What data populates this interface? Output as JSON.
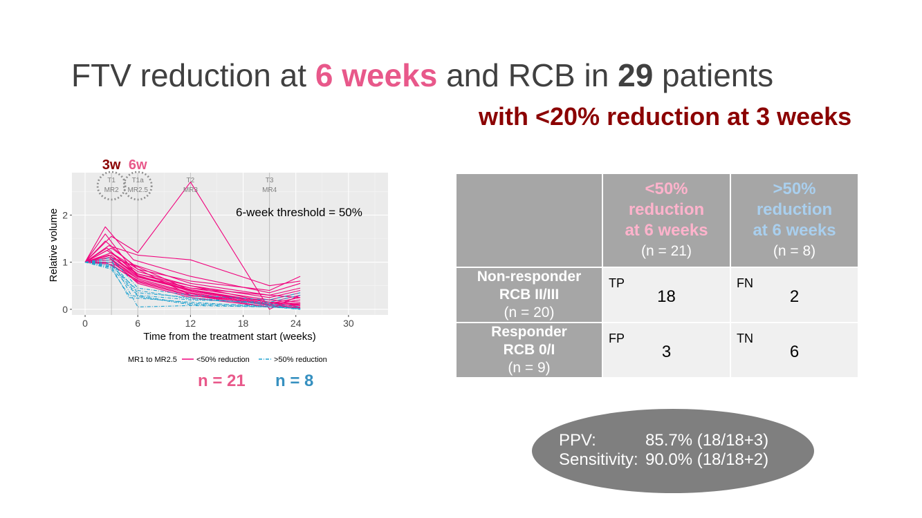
{
  "title": {
    "part1": "FTV reduction at ",
    "highlight1": "6 weeks",
    "part2": " and RCB in ",
    "highlight2": "29",
    "part3": " patients"
  },
  "subtitle": "with <20% reduction at 3 weeks",
  "colors": {
    "pink": "#e8588a",
    "magenta": "#f0007c",
    "blue": "#3690c0",
    "dash_blue": "#1fa2cf",
    "darkred": "#8b0000"
  },
  "chart_data": {
    "type": "line",
    "xlabel": "Time from the treatment start (weeks)",
    "ylabel": "Relative volume",
    "xticks": [
      0,
      6,
      12,
      18,
      24,
      30
    ],
    "yticks": [
      0,
      1,
      2
    ],
    "xlim": [
      -1.5,
      34.5
    ],
    "ylim": [
      -0.12,
      2.9
    ],
    "threshold_label": "6-week threshold = 50%",
    "markers": [
      {
        "week": 3,
        "label1": "T1",
        "label2": "MR2",
        "week_label": "3w",
        "circled": true
      },
      {
        "week": 6,
        "label1": "T1a",
        "label2": "MR2.5",
        "week_label": "6w",
        "circled": true
      },
      {
        "week": 12,
        "label1": "T2",
        "label2": "MR3",
        "week_label": "",
        "circled": false
      },
      {
        "week": 21,
        "label1": "T3",
        "label2": "MR4",
        "week_label": "",
        "circled": false
      }
    ],
    "legend": {
      "title": "MR1 to MR2.5",
      "pink_label": "<50% reduction",
      "blue_label": ">50% reduction"
    },
    "series_pink": [
      [
        [
          0,
          1
        ],
        [
          2.3,
          1.75
        ],
        [
          5.5,
          1.05
        ],
        [
          12,
          0.7
        ],
        [
          21,
          0.35
        ],
        [
          24.5,
          0.55
        ]
      ],
      [
        [
          0,
          1
        ],
        [
          3,
          1.55
        ],
        [
          6,
          1.2
        ],
        [
          12,
          2.7
        ],
        [
          21,
          0.0
        ],
        [
          24.5,
          0.3
        ]
      ],
      [
        [
          0,
          1
        ],
        [
          2.3,
          1.45
        ],
        [
          6,
          0.85
        ],
        [
          12,
          0.6
        ],
        [
          21,
          0.4
        ],
        [
          24.5,
          0.7
        ]
      ],
      [
        [
          0,
          1
        ],
        [
          2.7,
          1.35
        ],
        [
          6,
          1.15
        ],
        [
          12,
          1.05
        ],
        [
          21,
          0.5
        ],
        [
          24.5,
          0.6
        ]
      ],
      [
        [
          0,
          1
        ],
        [
          3,
          1.3
        ],
        [
          5.5,
          0.95
        ],
        [
          12,
          0.55
        ],
        [
          21,
          0.3
        ],
        [
          24.5,
          0.45
        ]
      ],
      [
        [
          0,
          1
        ],
        [
          2.5,
          1.25
        ],
        [
          6,
          0.8
        ],
        [
          12,
          0.5
        ],
        [
          21,
          0.25
        ],
        [
          24.5,
          0.4
        ]
      ],
      [
        [
          0,
          1
        ],
        [
          3,
          1.2
        ],
        [
          6,
          0.75
        ],
        [
          12,
          0.45
        ],
        [
          21,
          0.2
        ],
        [
          24.5,
          0.35
        ]
      ],
      [
        [
          0,
          1
        ],
        [
          3,
          1.15
        ],
        [
          6,
          0.7
        ],
        [
          12,
          0.42
        ],
        [
          21,
          0.15
        ],
        [
          24.5,
          0.3
        ]
      ],
      [
        [
          0,
          1
        ],
        [
          2.7,
          1.1
        ],
        [
          6,
          0.68
        ],
        [
          12,
          0.4
        ],
        [
          21,
          0.12
        ],
        [
          24.5,
          0.25
        ]
      ],
      [
        [
          0,
          1
        ],
        [
          3,
          1.05
        ],
        [
          6,
          0.65
        ],
        [
          12,
          0.35
        ],
        [
          21,
          0.1
        ],
        [
          24.5,
          0.2
        ]
      ],
      [
        [
          0,
          1
        ],
        [
          3,
          1.0
        ],
        [
          6,
          0.6
        ],
        [
          12,
          0.3
        ],
        [
          21,
          0.05
        ],
        [
          24.5,
          0.12
        ]
      ],
      [
        [
          0,
          1
        ],
        [
          2.5,
          0.98
        ],
        [
          6,
          0.62
        ],
        [
          12,
          0.33
        ],
        [
          21,
          0.08
        ],
        [
          24.5,
          0.1
        ]
      ],
      [
        [
          0,
          1
        ],
        [
          3,
          0.95
        ],
        [
          6,
          0.58
        ],
        [
          12,
          0.28
        ],
        [
          21,
          0.2
        ],
        [
          24.5,
          0.15
        ]
      ],
      [
        [
          0,
          1
        ],
        [
          3,
          1.1
        ],
        [
          6,
          0.9
        ],
        [
          12,
          0.4
        ],
        [
          21,
          0.15
        ],
        [
          24.5,
          0.1
        ]
      ],
      [
        [
          0,
          1
        ],
        [
          2.5,
          1.3
        ],
        [
          6,
          0.72
        ],
        [
          12,
          0.38
        ],
        [
          21,
          0.12
        ],
        [
          24.5,
          0.08
        ]
      ],
      [
        [
          0,
          1
        ],
        [
          3,
          1.05
        ],
        [
          6,
          0.55
        ],
        [
          12,
          0.25
        ],
        [
          21,
          0.05
        ],
        [
          24.5,
          0.05
        ]
      ],
      [
        [
          0,
          1
        ],
        [
          3,
          1.2
        ],
        [
          6,
          0.85
        ],
        [
          12,
          0.3
        ],
        [
          21,
          0.1
        ],
        [
          24.5,
          0.03
        ]
      ],
      [
        [
          0,
          1
        ],
        [
          2.3,
          1.6
        ],
        [
          6,
          0.7
        ],
        [
          12,
          0.45
        ],
        [
          21,
          0.3
        ],
        [
          24.5,
          0.25
        ]
      ],
      [
        [
          0,
          1
        ],
        [
          3,
          1.1
        ],
        [
          6,
          0.75
        ],
        [
          12,
          0.5
        ],
        [
          21,
          0.15
        ],
        [
          24.5,
          0.05
        ]
      ],
      [
        [
          0,
          1
        ],
        [
          3,
          1.0
        ],
        [
          6,
          0.65
        ],
        [
          12,
          0.35
        ],
        [
          21,
          0.1
        ],
        [
          24.5,
          0.02
        ]
      ],
      [
        [
          0,
          1
        ],
        [
          2.7,
          1.15
        ],
        [
          6,
          0.7
        ],
        [
          12,
          0.4
        ],
        [
          21,
          0.15
        ],
        [
          24.5,
          0.12
        ]
      ]
    ],
    "series_blue": [
      [
        [
          0,
          1
        ],
        [
          3,
          0.85
        ],
        [
          5,
          0.3
        ],
        [
          12,
          0.1
        ],
        [
          21,
          0.05
        ],
        [
          24.5,
          0.0
        ]
      ],
      [
        [
          0,
          1
        ],
        [
          3,
          0.9
        ],
        [
          5,
          0.25
        ],
        [
          12,
          0.15
        ],
        [
          21,
          0.05
        ],
        [
          24.5,
          0.02
        ]
      ],
      [
        [
          0,
          1
        ],
        [
          3,
          1.0
        ],
        [
          6,
          0.35
        ],
        [
          12,
          0.25
        ],
        [
          21,
          0.1
        ],
        [
          24.5,
          0.0
        ]
      ],
      [
        [
          0,
          1
        ],
        [
          3,
          0.95
        ],
        [
          6,
          0.3
        ],
        [
          12,
          0.2
        ],
        [
          21,
          0.15
        ],
        [
          24.5,
          0.3
        ]
      ],
      [
        [
          0,
          1
        ],
        [
          3,
          1.1
        ],
        [
          6,
          0.45
        ],
        [
          12,
          0.3
        ],
        [
          21,
          0.2
        ],
        [
          24.5,
          0.35
        ]
      ],
      [
        [
          0,
          1
        ],
        [
          3,
          0.92
        ],
        [
          6,
          0.4
        ],
        [
          12,
          0.22
        ],
        [
          21,
          0.12
        ],
        [
          24.5,
          0.05
        ]
      ],
      [
        [
          0,
          1
        ],
        [
          3,
          0.88
        ],
        [
          6,
          0.28
        ],
        [
          12,
          0.12
        ],
        [
          21,
          0.08
        ],
        [
          24.5,
          0.0
        ]
      ],
      [
        [
          0,
          1
        ],
        [
          3,
          1.05
        ],
        [
          6,
          0.05
        ],
        [
          12,
          0.08
        ],
        [
          21,
          0.05
        ],
        [
          24.5,
          0.02
        ]
      ]
    ]
  },
  "counts": {
    "pink": "n = 21",
    "blue": "n = 8"
  },
  "table": {
    "col1": {
      "l1": "<50%",
      "l2": "reduction",
      "l3": "at 6 weeks",
      "n": "(n = 21)"
    },
    "col2": {
      "l1": ">50%",
      "l2": "reduction",
      "l3": "at 6 weeks",
      "n": "(n = 8)"
    },
    "row1": {
      "l1": "Non-responder",
      "l2": "RCB II/III",
      "n": "(n = 20)"
    },
    "row2": {
      "l1": "Responder",
      "l2": "RCB 0/I",
      "n": "(n = 9)"
    },
    "cells": {
      "tp": {
        "label": "TP",
        "value": "18"
      },
      "fn": {
        "label": "FN",
        "value": "2"
      },
      "fp": {
        "label": "FP",
        "value": "3"
      },
      "tn": {
        "label": "TN",
        "value": "6"
      }
    }
  },
  "metrics": {
    "ppv": {
      "label": "PPV:",
      "value": "85.7% (18/18+3)"
    },
    "sens": {
      "label": "Sensitivity:",
      "value": "90.0% (18/18+2)"
    }
  }
}
